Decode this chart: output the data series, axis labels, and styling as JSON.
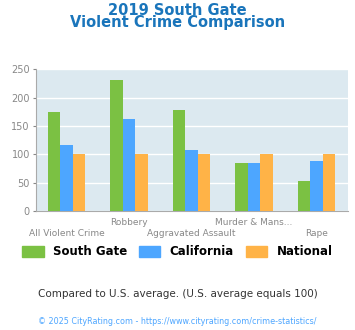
{
  "title_line1": "2019 South Gate",
  "title_line2": "Violent Crime Comparison",
  "categories_top": [
    "",
    "Robbery",
    "",
    "Murder & Mans...",
    ""
  ],
  "categories_bottom": [
    "All Violent Crime",
    "",
    "Aggravated Assault",
    "",
    "Rape"
  ],
  "series": {
    "South Gate": [
      175,
      232,
      178,
      85,
      53
    ],
    "California": [
      117,
      163,
      107,
      85,
      88
    ],
    "National": [
      100,
      100,
      100,
      100,
      100
    ]
  },
  "colors": {
    "South Gate": "#7bc143",
    "California": "#4da6ff",
    "National": "#ffb347"
  },
  "ylim": [
    0,
    250
  ],
  "yticks": [
    0,
    50,
    100,
    150,
    200,
    250
  ],
  "plot_bg_color": "#dce9f0",
  "title_color": "#1a75bb",
  "axis_label_color": "#888888",
  "subtitle_text": "Compared to U.S. average. (U.S. average equals 100)",
  "subtitle_color": "#333333",
  "footer_text": "© 2025 CityRating.com - https://www.cityrating.com/crime-statistics/",
  "footer_color": "#4da6ff",
  "legend_labels": [
    "South Gate",
    "California",
    "National"
  ],
  "grid_color": "#ffffff"
}
